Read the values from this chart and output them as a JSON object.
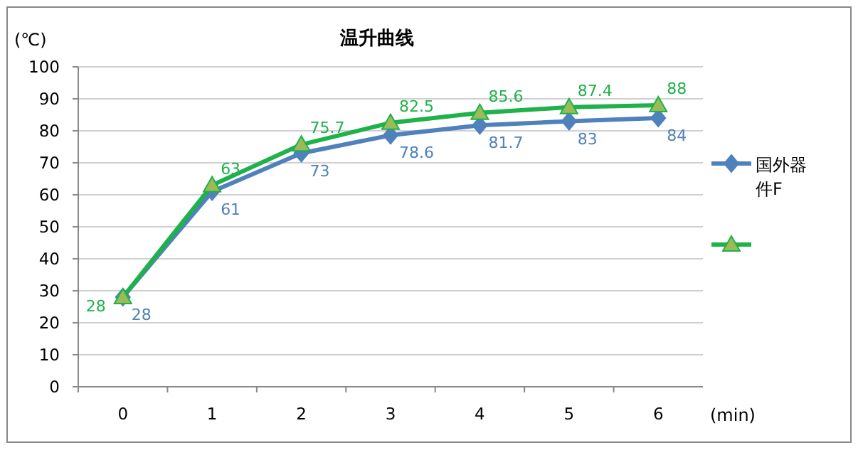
{
  "chart_data": {
    "type": "line",
    "title": "温升曲线",
    "xlabel": "(min)",
    "ylabel": "(℃)",
    "categories": [
      "0",
      "1",
      "2",
      "3",
      "4",
      "5",
      "6"
    ],
    "ylim": [
      0,
      100
    ],
    "yticks": [
      0,
      10,
      20,
      30,
      40,
      50,
      60,
      70,
      80,
      90,
      100
    ],
    "grid": "y",
    "legend": "right",
    "series": [
      {
        "name": "国外器件F",
        "color": "#4f81bd",
        "marker": "diamond",
        "values": [
          28,
          61,
          73,
          78.6,
          81.7,
          83,
          84
        ],
        "value_labels": [
          "28",
          "61",
          "73",
          "78.6",
          "81.7",
          "83",
          "84"
        ]
      },
      {
        "color": "#1fb14a",
        "marker": "triangle",
        "values": [
          28,
          63,
          75.7,
          82.5,
          85.6,
          87.4,
          88
        ],
        "value_labels": [
          "28",
          "63",
          "75.7",
          "82.5",
          "85.6",
          "87.4",
          "88"
        ]
      }
    ]
  }
}
